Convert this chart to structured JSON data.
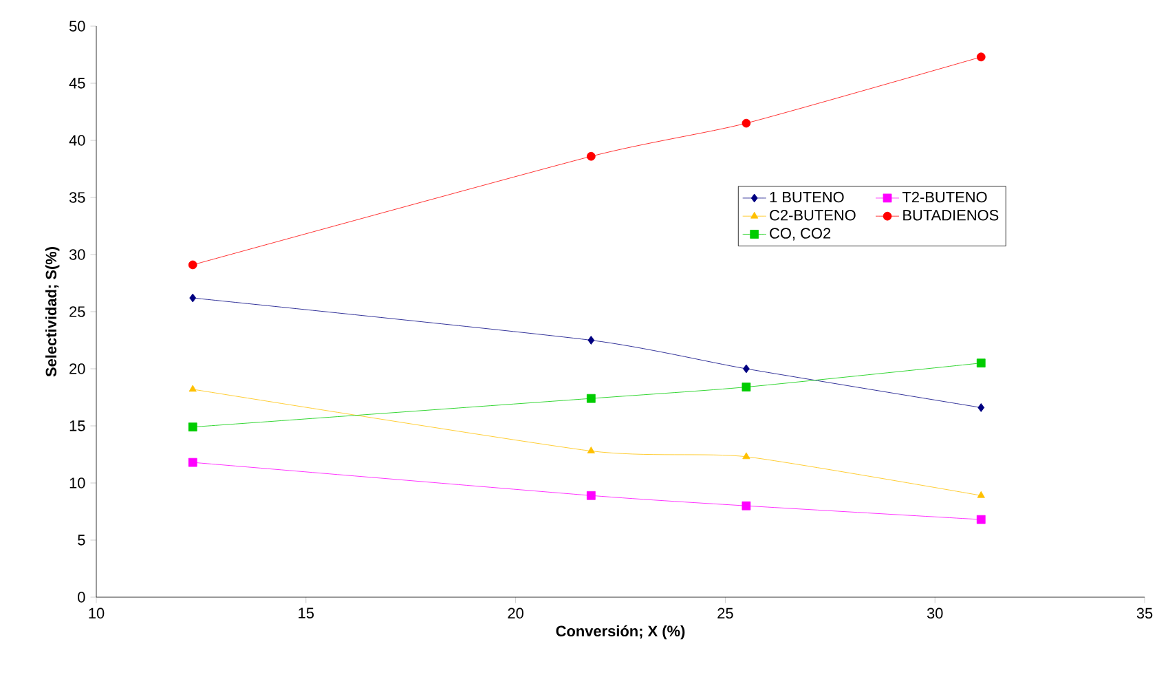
{
  "chart_data": {
    "type": "line",
    "xlabel": "Conversión; X (%)",
    "ylabel": "Selectividad; S(%)",
    "x": [
      12.3,
      21.8,
      25.5,
      31.1
    ],
    "series": [
      {
        "name": "1 BUTENO",
        "color": "#000080",
        "marker": "diamond",
        "values": [
          26.2,
          22.5,
          20.0,
          16.6
        ]
      },
      {
        "name": "T2-BUTENO",
        "color": "#ff00ff",
        "marker": "square",
        "values": [
          11.8,
          8.9,
          8.0,
          6.8
        ]
      },
      {
        "name": "C2-BUTENO",
        "color": "#ffc000",
        "marker": "triangle",
        "values": [
          18.2,
          12.8,
          12.3,
          8.9
        ]
      },
      {
        "name": "BUTADIENOS",
        "color": "#ff0000",
        "marker": "circle",
        "values": [
          29.1,
          38.6,
          41.5,
          47.3
        ]
      },
      {
        "name": "CO, CO2",
        "color": "#00cc00",
        "marker": "square",
        "values": [
          14.9,
          17.4,
          18.4,
          20.5
        ]
      }
    ],
    "xlim": [
      10,
      35
    ],
    "xticks": [
      10,
      15,
      20,
      25,
      30,
      35
    ],
    "ylim": [
      0,
      50
    ],
    "yticks": [
      0,
      5,
      10,
      15,
      20,
      25,
      30,
      35,
      40,
      45,
      50
    ],
    "grid": false,
    "legend": "top right",
    "line_style": "solid"
  }
}
